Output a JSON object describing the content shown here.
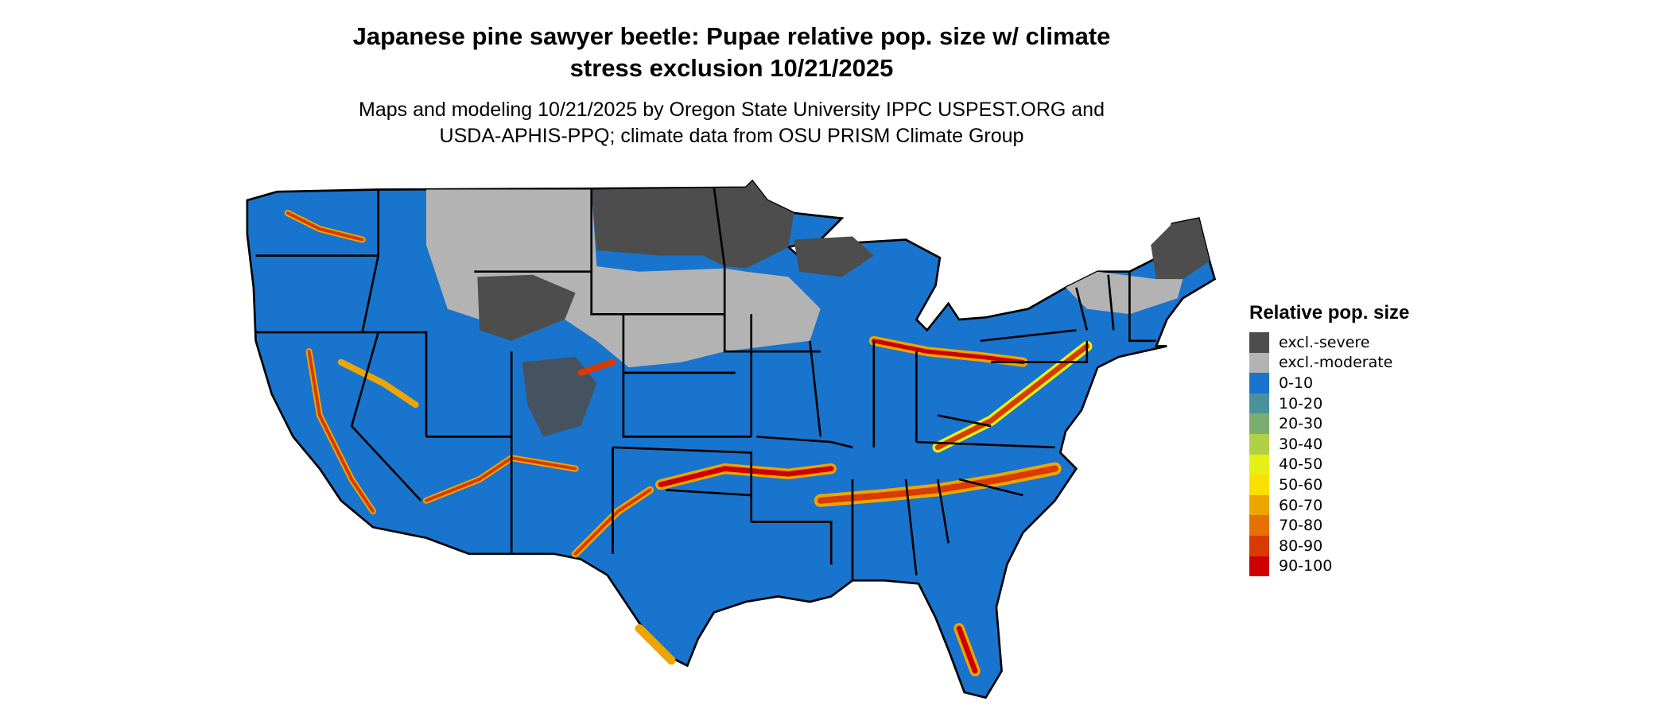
{
  "title": "Japanese pine sawyer beetle: Pupae relative pop. size w/ climate stress exclusion 10/21/2025",
  "title_line1": "Japanese pine sawyer beetle: Pupae relative pop. size w/ climate",
  "title_line2": "stress exclusion 10/21/2025",
  "subtitle_line1": "Maps and modeling 10/21/2025 by Oregon State University IPPC USPEST.ORG and",
  "subtitle_line2": "USDA-APHIS-PPQ; climate data from OSU PRISM Climate Group",
  "map": {
    "region": "Contiguous United States",
    "boundaries": "state outlines"
  },
  "legend": {
    "title": "Relative pop. size",
    "items": [
      {
        "label": "excl.-severe",
        "color": "#4d4d4d"
      },
      {
        "label": "excl.-moderate",
        "color": "#b3b3b3"
      },
      {
        "label": "0-10",
        "color": "#1874cd"
      },
      {
        "label": "10-20",
        "color": "#4a919e"
      },
      {
        "label": "20-30",
        "color": "#7aad70"
      },
      {
        "label": "30-40",
        "color": "#b2d045"
      },
      {
        "label": "40-50",
        "color": "#e5f016"
      },
      {
        "label": "50-60",
        "color": "#f8e000"
      },
      {
        "label": "60-70",
        "color": "#eea500"
      },
      {
        "label": "70-80",
        "color": "#e57200"
      },
      {
        "label": "80-90",
        "color": "#d83a00"
      },
      {
        "label": "90-100",
        "color": "#cd0000"
      }
    ]
  }
}
